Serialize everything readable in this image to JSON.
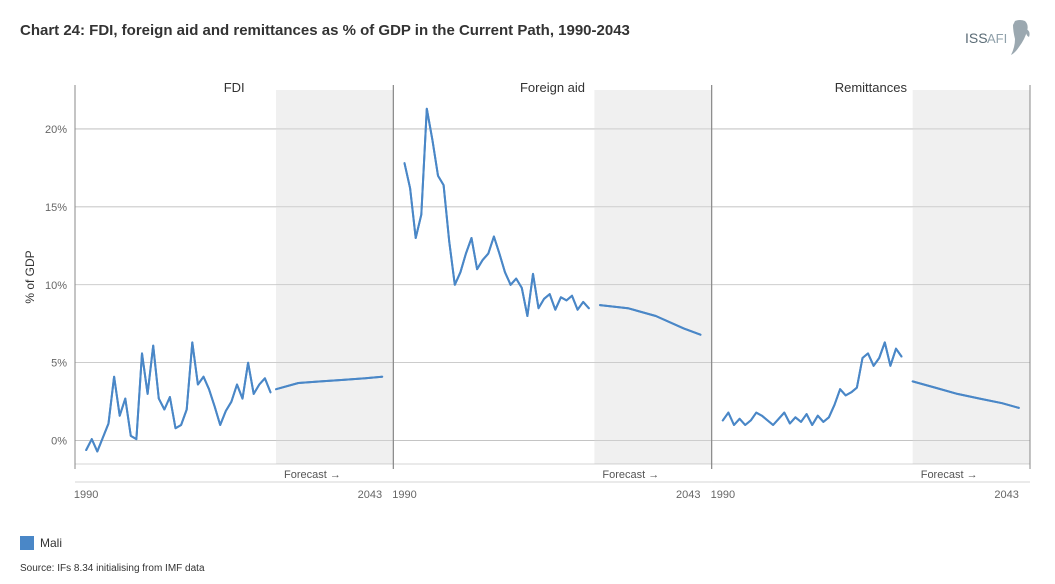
{
  "title": "Chart 24: FDI, foreign aid and remittances as % of GDP in the Current Path, 1990-2043",
  "logo_text": "ISS AFI",
  "y_axis_title": "% of GDP",
  "y_ticks": [
    0,
    5,
    10,
    15,
    20
  ],
  "y_tick_labels": [
    "0%",
    "5%",
    "10%",
    "15%",
    "20%"
  ],
  "ylim": [
    -1.5,
    22.5
  ],
  "x_ticks_labels": [
    "1990",
    "2043"
  ],
  "xlim": [
    1988,
    2045
  ],
  "forecast_start_year": 2024,
  "forecast_label": "Forecast →",
  "line_color": "#4a87c7",
  "grid_color": "#aaaaaa",
  "forecast_band_color": "#f0f0f0",
  "background_color": "#ffffff",
  "legend": {
    "label": "Mali",
    "color": "#4a87c7"
  },
  "source": "Source: IFs 8.34 initialising from IMF data",
  "panels": [
    {
      "title": "FDI",
      "series": [
        {
          "year": 1990,
          "value": -0.6
        },
        {
          "year": 1991,
          "value": 0.1
        },
        {
          "year": 1992,
          "value": -0.7
        },
        {
          "year": 1993,
          "value": 0.2
        },
        {
          "year": 1994,
          "value": 1.1
        },
        {
          "year": 1995,
          "value": 4.1
        },
        {
          "year": 1996,
          "value": 1.6
        },
        {
          "year": 1997,
          "value": 2.7
        },
        {
          "year": 1998,
          "value": 0.3
        },
        {
          "year": 1999,
          "value": 0.1
        },
        {
          "year": 2000,
          "value": 5.6
        },
        {
          "year": 2001,
          "value": 3.0
        },
        {
          "year": 2002,
          "value": 6.1
        },
        {
          "year": 2003,
          "value": 2.7
        },
        {
          "year": 2004,
          "value": 2.0
        },
        {
          "year": 2005,
          "value": 2.8
        },
        {
          "year": 2006,
          "value": 0.8
        },
        {
          "year": 2007,
          "value": 1.0
        },
        {
          "year": 2008,
          "value": 2.0
        },
        {
          "year": 2009,
          "value": 6.3
        },
        {
          "year": 2010,
          "value": 3.6
        },
        {
          "year": 2011,
          "value": 4.1
        },
        {
          "year": 2012,
          "value": 3.3
        },
        {
          "year": 2013,
          "value": 2.2
        },
        {
          "year": 2014,
          "value": 1.0
        },
        {
          "year": 2015,
          "value": 1.9
        },
        {
          "year": 2016,
          "value": 2.5
        },
        {
          "year": 2017,
          "value": 3.6
        },
        {
          "year": 2018,
          "value": 2.7
        },
        {
          "year": 2019,
          "value": 5.0
        },
        {
          "year": 2020,
          "value": 3.0
        },
        {
          "year": 2021,
          "value": 3.6
        },
        {
          "year": 2022,
          "value": 4.0
        },
        {
          "year": 2023,
          "value": 3.1
        }
      ],
      "forecast": [
        {
          "year": 2024,
          "value": 3.3
        },
        {
          "year": 2028,
          "value": 3.7
        },
        {
          "year": 2032,
          "value": 3.8
        },
        {
          "year": 2036,
          "value": 3.9
        },
        {
          "year": 2040,
          "value": 4.0
        },
        {
          "year": 2043,
          "value": 4.1
        }
      ]
    },
    {
      "title": "Foreign aid",
      "series": [
        {
          "year": 1990,
          "value": 17.8
        },
        {
          "year": 1991,
          "value": 16.2
        },
        {
          "year": 1992,
          "value": 13.0
        },
        {
          "year": 1993,
          "value": 14.5
        },
        {
          "year": 1994,
          "value": 21.3
        },
        {
          "year": 1995,
          "value": 19.3
        },
        {
          "year": 1996,
          "value": 17.0
        },
        {
          "year": 1997,
          "value": 16.4
        },
        {
          "year": 1998,
          "value": 12.8
        },
        {
          "year": 1999,
          "value": 10.0
        },
        {
          "year": 2000,
          "value": 10.8
        },
        {
          "year": 2001,
          "value": 12.0
        },
        {
          "year": 2002,
          "value": 13.0
        },
        {
          "year": 2003,
          "value": 11.0
        },
        {
          "year": 2004,
          "value": 11.6
        },
        {
          "year": 2005,
          "value": 12.0
        },
        {
          "year": 2006,
          "value": 13.1
        },
        {
          "year": 2007,
          "value": 12.0
        },
        {
          "year": 2008,
          "value": 10.8
        },
        {
          "year": 2009,
          "value": 10.0
        },
        {
          "year": 2010,
          "value": 10.4
        },
        {
          "year": 2011,
          "value": 9.8
        },
        {
          "year": 2012,
          "value": 8.0
        },
        {
          "year": 2013,
          "value": 10.7
        },
        {
          "year": 2014,
          "value": 8.5
        },
        {
          "year": 2015,
          "value": 9.1
        },
        {
          "year": 2016,
          "value": 9.4
        },
        {
          "year": 2017,
          "value": 8.4
        },
        {
          "year": 2018,
          "value": 9.2
        },
        {
          "year": 2019,
          "value": 9.0
        },
        {
          "year": 2020,
          "value": 9.3
        },
        {
          "year": 2021,
          "value": 8.4
        },
        {
          "year": 2022,
          "value": 8.9
        },
        {
          "year": 2023,
          "value": 8.5
        }
      ],
      "forecast": [
        {
          "year": 2025,
          "value": 8.7
        },
        {
          "year": 2030,
          "value": 8.5
        },
        {
          "year": 2035,
          "value": 8.0
        },
        {
          "year": 2040,
          "value": 7.2
        },
        {
          "year": 2043,
          "value": 6.8
        }
      ]
    },
    {
      "title": "Remittances",
      "series": [
        {
          "year": 1990,
          "value": 1.3
        },
        {
          "year": 1991,
          "value": 1.8
        },
        {
          "year": 1992,
          "value": 1.0
        },
        {
          "year": 1993,
          "value": 1.4
        },
        {
          "year": 1994,
          "value": 1.0
        },
        {
          "year": 1995,
          "value": 1.3
        },
        {
          "year": 1996,
          "value": 1.8
        },
        {
          "year": 1997,
          "value": 1.6
        },
        {
          "year": 1998,
          "value": 1.3
        },
        {
          "year": 1999,
          "value": 1.0
        },
        {
          "year": 2000,
          "value": 1.4
        },
        {
          "year": 2001,
          "value": 1.8
        },
        {
          "year": 2002,
          "value": 1.1
        },
        {
          "year": 2003,
          "value": 1.5
        },
        {
          "year": 2004,
          "value": 1.2
        },
        {
          "year": 2005,
          "value": 1.7
        },
        {
          "year": 2006,
          "value": 1.0
        },
        {
          "year": 2007,
          "value": 1.6
        },
        {
          "year": 2008,
          "value": 1.2
        },
        {
          "year": 2009,
          "value": 1.5
        },
        {
          "year": 2010,
          "value": 2.3
        },
        {
          "year": 2011,
          "value": 3.3
        },
        {
          "year": 2012,
          "value": 2.9
        },
        {
          "year": 2013,
          "value": 3.1
        },
        {
          "year": 2014,
          "value": 3.4
        },
        {
          "year": 2015,
          "value": 5.3
        },
        {
          "year": 2016,
          "value": 5.6
        },
        {
          "year": 2017,
          "value": 4.8
        },
        {
          "year": 2018,
          "value": 5.3
        },
        {
          "year": 2019,
          "value": 6.3
        },
        {
          "year": 2020,
          "value": 4.8
        },
        {
          "year": 2021,
          "value": 5.9
        },
        {
          "year": 2022,
          "value": 5.4
        }
      ],
      "forecast": [
        {
          "year": 2024,
          "value": 3.8
        },
        {
          "year": 2028,
          "value": 3.4
        },
        {
          "year": 2032,
          "value": 3.0
        },
        {
          "year": 2036,
          "value": 2.7
        },
        {
          "year": 2040,
          "value": 2.4
        },
        {
          "year": 2043,
          "value": 2.1
        }
      ]
    }
  ]
}
